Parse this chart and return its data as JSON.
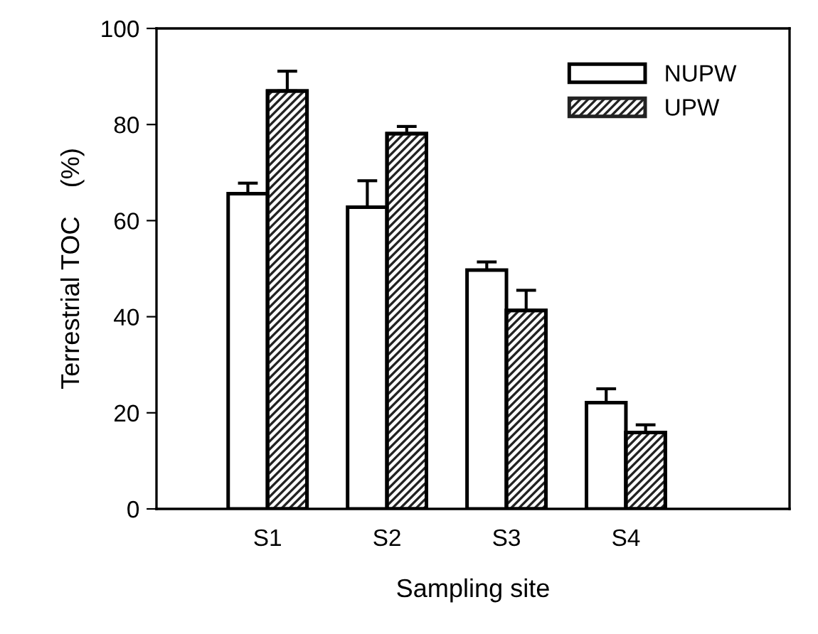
{
  "chart_data": {
    "type": "bar",
    "xlabel": "Sampling site",
    "ylabel": "Terrestrial TOC    (%)",
    "categories": [
      "S1",
      "S2",
      "S3",
      "S4"
    ],
    "series": [
      {
        "name": "NUPW",
        "color": "#ffffff",
        "values": [
          65.6,
          62.8,
          49.7,
          22.1
        ],
        "errors": [
          [
            65.6,
            67.8
          ],
          [
            62.8,
            68.3
          ],
          [
            49.7,
            51.4
          ],
          [
            22.1,
            25.0
          ]
        ]
      },
      {
        "name": "UPW",
        "color": "#222222",
        "values": [
          87.0,
          78.1,
          41.3,
          15.9
        ],
        "errors": [
          [
            87.0,
            91.1
          ],
          [
            78.1,
            79.6
          ],
          [
            41.3,
            45.5
          ],
          [
            15.9,
            17.5
          ]
        ]
      }
    ],
    "ylim": [
      0,
      100
    ],
    "yticks": [
      0,
      20,
      40,
      60,
      80,
      100
    ],
    "grid": false,
    "legend": "top right"
  }
}
